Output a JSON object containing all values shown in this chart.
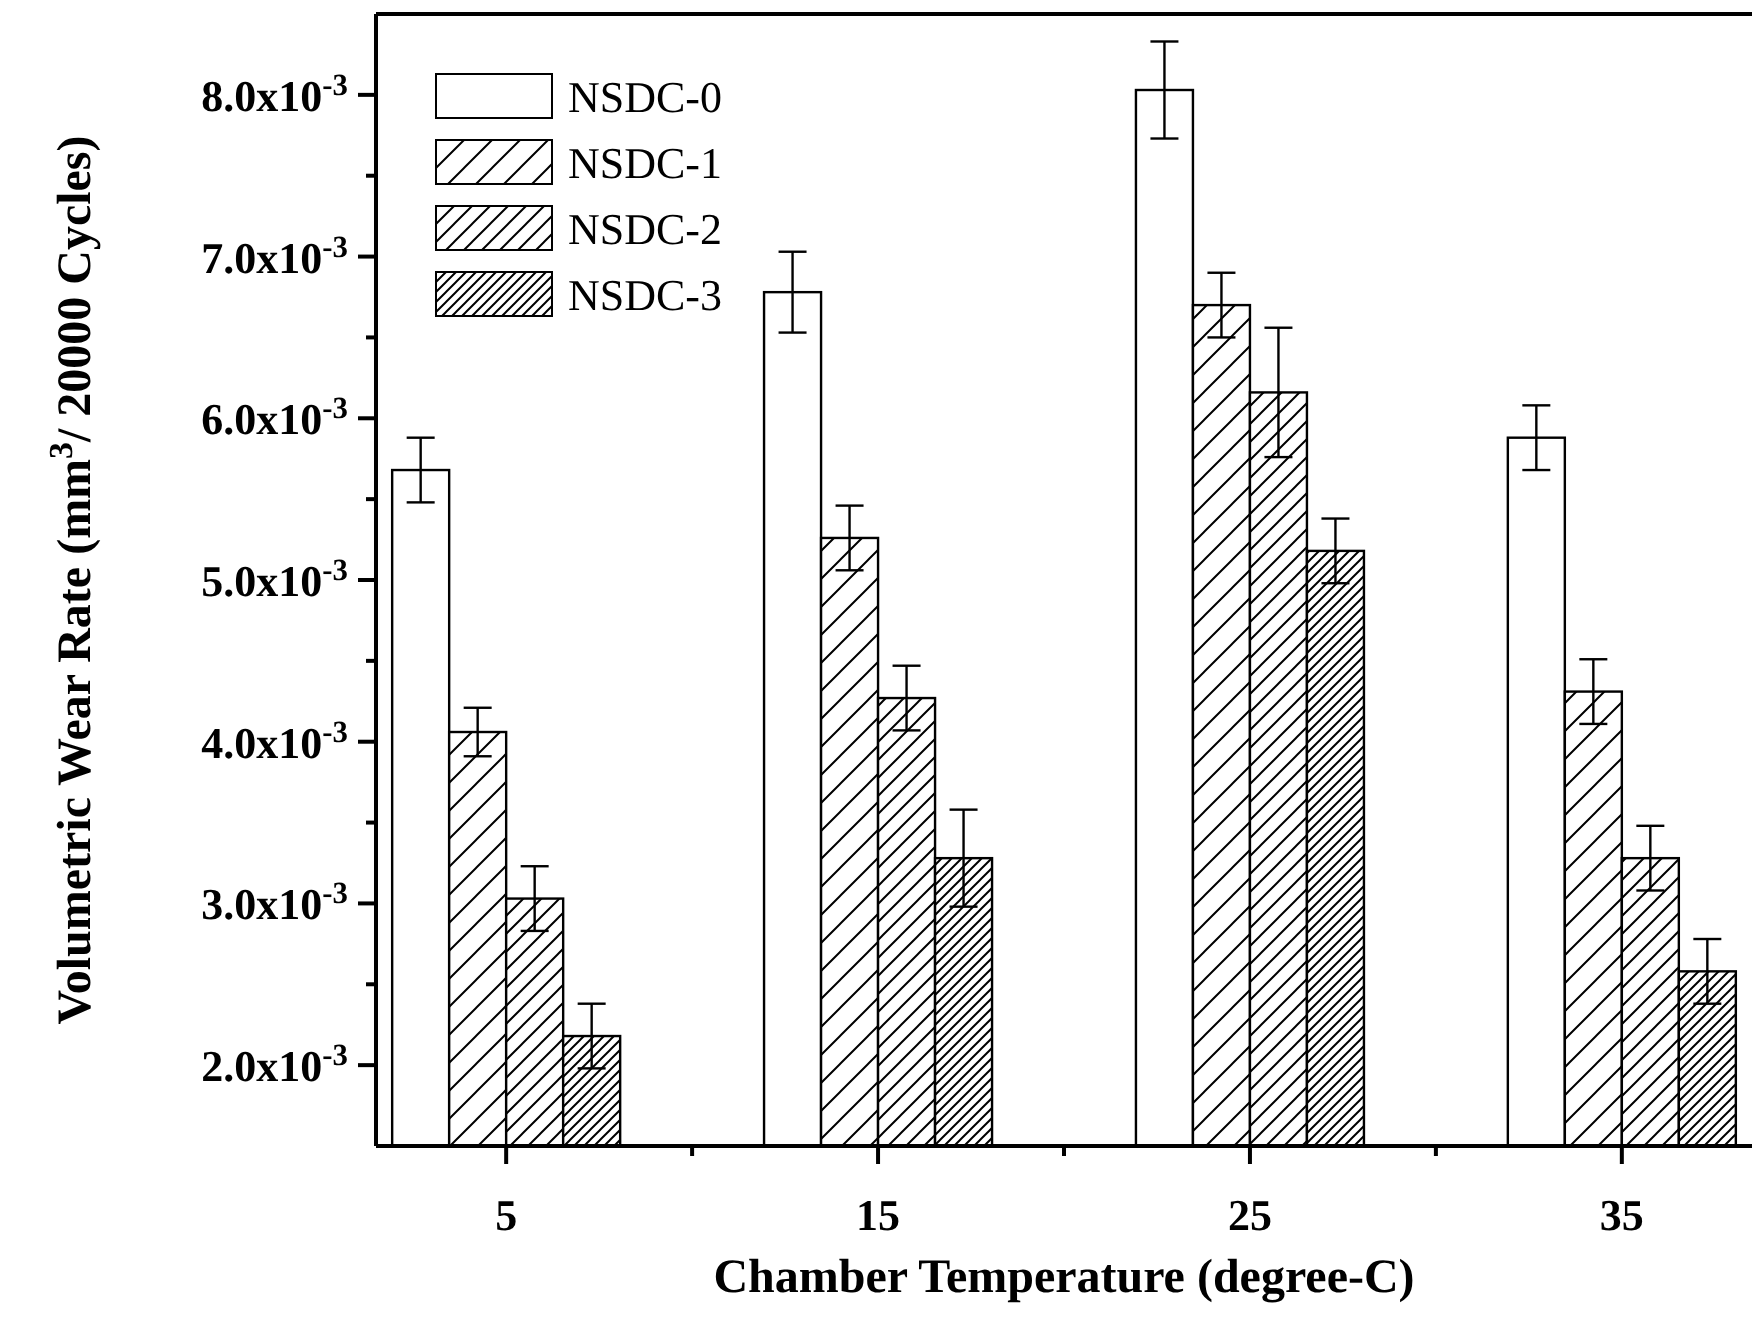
{
  "chart_data": {
    "type": "bar",
    "xlabel": "Chamber Temperature (degree-C)",
    "ylabel": "Volumetric Wear Rate (mm$^{3}$/ 20000 Cycles)",
    "categories": [
      "5",
      "15",
      "25",
      "35"
    ],
    "series": [
      {
        "name": "NSDC-0",
        "color": "#ffffff",
        "values": [
          0.00568,
          0.00678,
          0.00803,
          0.00588
        ],
        "errors": [
          0.0002,
          0.00025,
          0.0003,
          0.0002
        ]
      },
      {
        "name": "NSDC-1",
        "color": "#000000",
        "values": [
          0.00406,
          0.00526,
          0.0067,
          0.00431
        ],
        "errors": [
          0.00015,
          0.0002,
          0.0002,
          0.0002
        ]
      },
      {
        "name": "NSDC-2",
        "color": "#000000",
        "values": [
          0.00303,
          0.00427,
          0.00616,
          0.00328
        ],
        "errors": [
          0.0002,
          0.0002,
          0.0004,
          0.0002
        ]
      },
      {
        "name": "NSDC-3",
        "color": "#000000",
        "values": [
          0.00218,
          0.00328,
          0.00518,
          0.00258
        ],
        "errors": [
          0.0002,
          0.0003,
          0.0002,
          0.0002
        ]
      }
    ],
    "ylim": [
      0.0015,
      0.0085
    ],
    "yticks": [
      {
        "value": 0.002,
        "label": "2.0x10$^{-3}$"
      },
      {
        "value": 0.0025,
        "label": null
      },
      {
        "value": 0.003,
        "label": "3.0x10$^{-3}$"
      },
      {
        "value": 0.0035,
        "label": null
      },
      {
        "value": 0.004,
        "label": "4.0x10$^{-3}$"
      },
      {
        "value": 0.0045,
        "label": null
      },
      {
        "value": 0.005,
        "label": "5.0x10$^{-3}$"
      },
      {
        "value": 0.0055,
        "label": null
      },
      {
        "value": 0.006,
        "label": "6.0x10$^{-3}$"
      },
      {
        "value": 0.0065,
        "label": null
      },
      {
        "value": 0.007,
        "label": "7.0x10$^{-3}$"
      },
      {
        "value": 0.0075,
        "label": null
      },
      {
        "value": 0.008,
        "label": "8.0x10$^{-3}$"
      }
    ],
    "legend": "top left",
    "grid": false
  }
}
